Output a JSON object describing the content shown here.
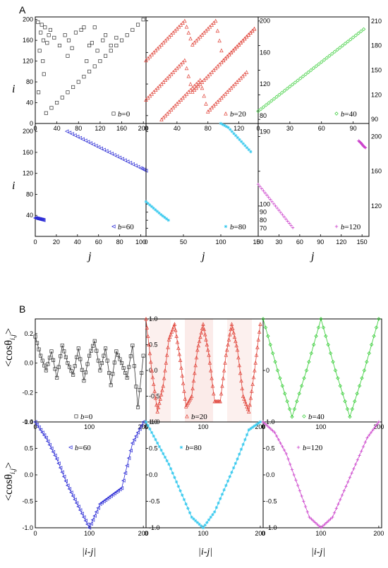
{
  "labels": {
    "A": "A",
    "B": "B",
    "ylabel_i": "i",
    "xlabel_j": "j",
    "ylabel_cos": "<cosθ",
    "ylabel_cos_sub": "i,j",
    "ylabel_cos_tail": ">",
    "xlabel_ij": "|i-j|"
  },
  "colors": {
    "b0": "#333333",
    "b20": "#e0443a",
    "b40": "#33cc33",
    "b60": "#2d2dd6",
    "b80": "#33c8ee",
    "b120": "#cc44cc",
    "b20_fill": "#f6d3cf"
  },
  "chart_data": [
    {
      "panel": "A",
      "type": "scatter",
      "subplot": "b=0",
      "legend": "b=0",
      "marker": "square",
      "xlim": [
        0,
        205
      ],
      "ylim": [
        0,
        205
      ],
      "xticks": [
        0,
        40,
        80,
        120,
        160,
        200
      ],
      "yticks": [
        0,
        40,
        80,
        120,
        160,
        200
      ],
      "description_of_series": "contact map: diagonal band i=j plus scattered off-diagonal clusters above the diagonal",
      "series": [
        {
          "x": [
            20,
            30,
            40,
            50,
            60,
            70,
            80,
            90,
            100,
            110,
            120,
            130,
            140,
            150,
            160,
            170,
            180,
            190,
            200,
            10,
            15,
            22,
            28,
            35,
            45,
            55,
            62,
            75,
            85,
            5,
            12,
            18,
            25,
            8,
            14,
            60,
            68,
            90,
            100,
            115,
            125,
            130,
            140,
            150,
            95,
            105,
            110,
            6,
            16
          ],
          "y": [
            20,
            30,
            40,
            50,
            60,
            70,
            80,
            90,
            100,
            110,
            120,
            130,
            140,
            150,
            160,
            170,
            180,
            190,
            200,
            175,
            160,
            155,
            180,
            165,
            150,
            170,
            160,
            175,
            180,
            195,
            190,
            185,
            170,
            140,
            120,
            130,
            145,
            185,
            150,
            140,
            160,
            170,
            150,
            165,
            120,
            155,
            185,
            60,
            95
          ]
        }
      ]
    },
    {
      "panel": "A",
      "type": "scatter",
      "subplot": "b=20",
      "legend": "b=20",
      "marker": "triangle",
      "xlim": [
        0,
        145
      ],
      "ylim": [
        70,
        205
      ],
      "xticks": [
        0,
        40,
        80,
        120
      ],
      "yticks": [
        80,
        120,
        160,
        200
      ],
      "series": [
        {
          "x": [
            0,
            10,
            20,
            30,
            40,
            50,
            60,
            70,
            80,
            90,
            100,
            110,
            120,
            130,
            140
          ],
          "y": [
            150,
            160,
            170,
            180,
            190,
            200,
            170,
            180,
            190,
            200,
            150,
            160,
            170,
            180,
            190
          ]
        },
        {
          "x": [
            0,
            10,
            20,
            30,
            40,
            50,
            60,
            70,
            80,
            90,
            100,
            110,
            120,
            130,
            140
          ],
          "y": [
            100,
            110,
            120,
            130,
            140,
            150,
            110,
            120,
            130,
            140,
            150,
            160,
            170,
            180,
            190
          ]
        },
        {
          "x": [
            20,
            30,
            40,
            50,
            60,
            70,
            80,
            90,
            100,
            110,
            120,
            130
          ],
          "y": [
            75,
            85,
            95,
            105,
            115,
            125,
            85,
            95,
            105,
            115,
            125,
            135
          ]
        }
      ]
    },
    {
      "panel": "A",
      "type": "scatter",
      "subplot": "b=40",
      "legend": "b=40",
      "marker": "diamond",
      "xlim": [
        0,
        105
      ],
      "ylim": [
        85,
        215
      ],
      "xticks": [
        0,
        30,
        60,
        90
      ],
      "yticks": [
        90,
        120,
        150,
        180,
        210
      ],
      "series": [
        {
          "x": [
            0,
            10,
            20,
            30,
            40,
            50,
            60,
            70,
            80,
            90,
            100
          ],
          "y": [
            100,
            110,
            120,
            130,
            140,
            150,
            160,
            170,
            180,
            190,
            200
          ]
        }
      ]
    },
    {
      "panel": "A",
      "type": "scatter",
      "subplot": "b=60",
      "legend": "b=60",
      "marker": "triangle-left",
      "xlim": [
        0,
        105
      ],
      "ylim": [
        0,
        215
      ],
      "xticks": [
        0,
        20,
        40,
        60,
        80,
        100
      ],
      "yticks": [
        40,
        80,
        120,
        160,
        200
      ],
      "series": [
        {
          "x": [
            30,
            40,
            50,
            60,
            70,
            80,
            90,
            100,
            105
          ],
          "y": [
            200,
            190,
            180,
            170,
            160,
            150,
            140,
            130,
            125
          ]
        },
        {
          "x": [
            0,
            2,
            4,
            6,
            8
          ],
          "y": [
            35,
            34,
            33,
            32,
            31
          ]
        }
      ]
    },
    {
      "panel": "A",
      "type": "scatter",
      "subplot": "b=80",
      "legend": "b=80",
      "marker": "star",
      "xlim": [
        0,
        150
      ],
      "ylim": [
        60,
        200
      ],
      "xticks": [
        0,
        50,
        100,
        150
      ],
      "yticks": [
        70,
        80,
        90,
        100,
        190
      ],
      "series": [
        {
          "x": [
            100,
            110,
            120,
            130,
            140
          ],
          "y": [
            200,
            195,
            185,
            175,
            165
          ]
        },
        {
          "x": [
            0,
            10,
            20,
            30
          ],
          "y": [
            103,
            95,
            87,
            80
          ]
        }
      ]
    },
    {
      "panel": "A",
      "type": "scatter",
      "subplot": "b=120",
      "legend": "b=120",
      "marker": "plus",
      "xlim": [
        0,
        160
      ],
      "ylim": [
        85,
        215
      ],
      "xticks": [
        0,
        30,
        60,
        90,
        120,
        150
      ],
      "yticks": [
        120,
        160,
        200
      ],
      "series": [
        {
          "x": [
            0,
            10,
            20,
            30,
            40,
            50
          ],
          "y": [
            145,
            135,
            125,
            115,
            105,
            95
          ]
        },
        {
          "x": [
            145,
            148,
            150,
            152,
            155
          ],
          "y": [
            195,
            193,
            191,
            189,
            187
          ]
        }
      ]
    },
    {
      "panel": "B",
      "type": "line",
      "subplot": "b=0",
      "legend": "b=0",
      "marker": "square",
      "xlim": [
        0,
        205
      ],
      "ylim": [
        -0.4,
        0.3
      ],
      "yticks": [
        -0.4,
        -0.2,
        0.0,
        0.2
      ],
      "ytick_labels": [
        "-0.4",
        "-0.2",
        "0.0",
        "0.2"
      ],
      "x": [
        0,
        10,
        20,
        30,
        40,
        50,
        60,
        70,
        80,
        90,
        100,
        110,
        120,
        130,
        140,
        150,
        160,
        170,
        180,
        190,
        200
      ],
      "y": [
        0.18,
        0.05,
        -0.05,
        0.08,
        -0.1,
        0.12,
        0.0,
        -0.08,
        0.1,
        -0.12,
        0.05,
        0.15,
        -0.05,
        0.1,
        -0.15,
        0.08,
        0.0,
        -0.1,
        0.12,
        -0.3,
        0.05
      ]
    },
    {
      "panel": "B",
      "type": "line",
      "subplot": "b=20",
      "legend": "b=20",
      "marker": "triangle",
      "xlim": [
        0,
        205
      ],
      "ylim": [
        -1.0,
        1.0
      ],
      "yticks": [
        -1.0,
        -0.5,
        0.0,
        0.5,
        1.0
      ],
      "ytick_labels": [
        "-1.0",
        "-0.5",
        "0.0",
        "0.5",
        "1.0"
      ],
      "x": [
        0,
        10,
        20,
        30,
        40,
        50,
        60,
        70,
        80,
        90,
        100,
        110,
        120,
        130,
        140,
        150,
        160,
        170,
        180,
        190,
        200
      ],
      "y": [
        1.0,
        0.0,
        -0.8,
        -0.3,
        0.6,
        0.9,
        0.2,
        -0.7,
        -0.5,
        0.4,
        0.9,
        0.3,
        -0.6,
        -0.6,
        0.3,
        0.9,
        0.4,
        -0.5,
        -0.8,
        0.0,
        0.9
      ]
    },
    {
      "panel": "B",
      "type": "line",
      "subplot": "b=40",
      "legend": "b=40",
      "marker": "diamond",
      "xlim": [
        0,
        205
      ],
      "ylim": [
        -1.0,
        1.0
      ],
      "yticks": [
        0.0
      ],
      "ytick_labels": [
        "0"
      ],
      "x": [
        0,
        25,
        50,
        75,
        100,
        125,
        150,
        175,
        200
      ],
      "y": [
        1.0,
        0.0,
        -0.9,
        0.0,
        1.0,
        0.0,
        -0.9,
        0.0,
        1.0
      ]
    },
    {
      "panel": "B",
      "type": "line",
      "subplot": "b=60",
      "legend": "b=60",
      "marker": "triangle-left",
      "xlim": [
        0,
        205
      ],
      "ylim": [
        -1.0,
        1.0
      ],
      "xticks": [
        0,
        100,
        200
      ],
      "yticks": [
        -1.0,
        -0.5,
        0.0,
        0.5,
        1.0
      ],
      "ytick_labels": [
        "-1.0",
        "-0.5",
        "0.0",
        "0.5",
        "1.0"
      ],
      "x": [
        0,
        20,
        40,
        60,
        80,
        100,
        120,
        140,
        160,
        180,
        200
      ],
      "y": [
        1.0,
        0.7,
        0.3,
        -0.2,
        -0.6,
        -1.0,
        -0.55,
        -0.4,
        -0.25,
        0.6,
        1.0
      ]
    },
    {
      "panel": "B",
      "type": "line",
      "subplot": "b=80",
      "legend": "b=80",
      "marker": "star",
      "xlim": [
        0,
        205
      ],
      "ylim": [
        -1.0,
        1.0
      ],
      "xticks": [
        0,
        100,
        200
      ],
      "yticks": [
        -1.0,
        -0.5,
        0.0,
        0.5,
        1.0
      ],
      "ytick_labels": [
        "-1.0",
        "-0.5",
        "0.0",
        "0.5",
        "1.0"
      ],
      "x": [
        0,
        20,
        40,
        60,
        80,
        100,
        120,
        140,
        160,
        180,
        200
      ],
      "y": [
        1.0,
        0.6,
        0.2,
        -0.3,
        -0.8,
        -1.0,
        -0.7,
        -0.2,
        0.3,
        0.85,
        1.0
      ]
    },
    {
      "panel": "B",
      "type": "line",
      "subplot": "b=120",
      "legend": "b=120",
      "marker": "plus",
      "xlim": [
        0,
        205
      ],
      "ylim": [
        -1.0,
        1.0
      ],
      "xticks": [
        0,
        100,
        200
      ],
      "yticks": [
        -1.0,
        -0.5,
        0.0,
        0.5,
        1.0
      ],
      "ytick_labels": [
        "-1.0",
        "-0.5",
        "0.0",
        "0.5",
        "1.0"
      ],
      "x": [
        0,
        20,
        40,
        60,
        80,
        100,
        120,
        140,
        160,
        180,
        200
      ],
      "y": [
        1.0,
        0.8,
        0.4,
        -0.2,
        -0.8,
        -1.0,
        -0.8,
        -0.3,
        0.2,
        0.7,
        1.0
      ]
    }
  ]
}
